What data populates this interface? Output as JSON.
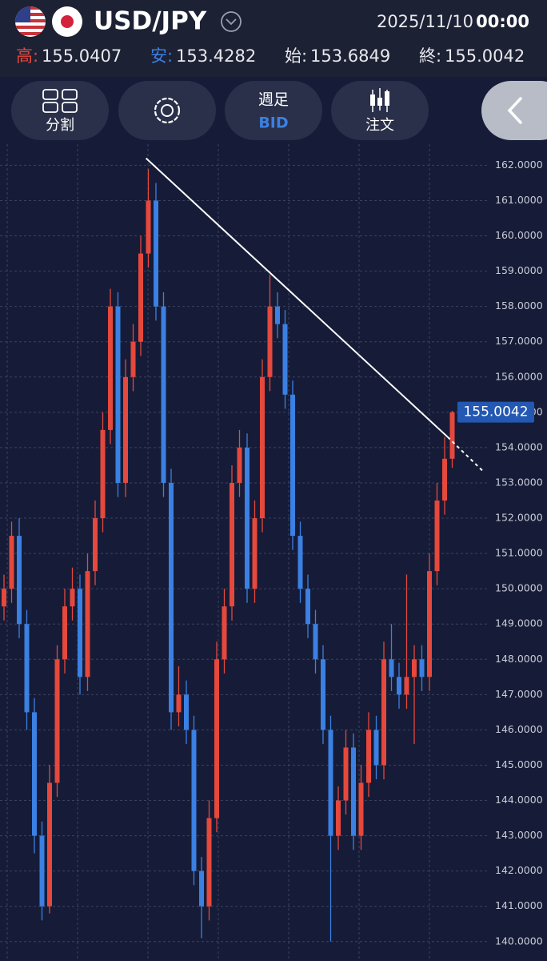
{
  "header": {
    "pair": "USD/JPY",
    "date": "2025/11/10",
    "time": "00:00",
    "ohlc": [
      {
        "label": "高:",
        "value": "155.0407"
      },
      {
        "label": "安:",
        "value": "153.4282"
      },
      {
        "label": "始:",
        "value": "153.6849"
      },
      {
        "label": "終:",
        "value": "155.0042"
      }
    ]
  },
  "toolbar": {
    "split": "分割",
    "period": "週足",
    "side": "BID",
    "order": "注文"
  },
  "chart_data": {
    "type": "candlestick",
    "up_color": "#e5483c",
    "down_color": "#3b80e3",
    "grid": true,
    "ylim": [
      139.45,
      162.6
    ],
    "yticks": [
      {
        "value": 140,
        "label": "140.0000"
      },
      {
        "value": 141,
        "label": "141.0000"
      },
      {
        "value": 142,
        "label": "142.0000"
      },
      {
        "value": 143,
        "label": "143.0000"
      },
      {
        "value": 144,
        "label": "144.0000"
      },
      {
        "value": 145,
        "label": "145.0000"
      },
      {
        "value": 146,
        "label": "146.0000"
      },
      {
        "value": 147,
        "label": "147.0000"
      },
      {
        "value": 148,
        "label": "148.0000"
      },
      {
        "value": 149,
        "label": "149.0000"
      },
      {
        "value": 150,
        "label": "150.0000"
      },
      {
        "value": 151,
        "label": "151.0000"
      },
      {
        "value": 152,
        "label": "152.0000"
      },
      {
        "value": 153,
        "label": "153.0000"
      },
      {
        "value": 154,
        "label": "154.0000"
      },
      {
        "value": 155,
        "label": "155.0000"
      },
      {
        "value": 156,
        "label": "156.0000"
      },
      {
        "value": 157,
        "label": "157.0000"
      },
      {
        "value": 158,
        "label": "158.0000"
      },
      {
        "value": 159,
        "label": "159.0000"
      },
      {
        "value": 160,
        "label": "160.0000"
      },
      {
        "value": 161,
        "label": "161.0000"
      },
      {
        "value": 162,
        "label": "162.0000"
      }
    ],
    "open": [
      149.5,
      150.0,
      151.5,
      149.0,
      146.5,
      143.0,
      141.0,
      144.5,
      148.0,
      149.5,
      150.0,
      147.5,
      150.5,
      152.0,
      154.5,
      158.0,
      153.0,
      156.0,
      157.0,
      159.5,
      161.0,
      158.0,
      153.0,
      146.5,
      147.0,
      146.0,
      142.0,
      141.0,
      143.5,
      148.0,
      149.5,
      153.0,
      154.0,
      150.0,
      152.0,
      156.0,
      158.0,
      157.5,
      155.5,
      151.5,
      150.0,
      149.0,
      148.0,
      146.0,
      143.0,
      144.0,
      145.5,
      143.0,
      144.5,
      146.0,
      145.0,
      148.0,
      147.5,
      147.0,
      147.5,
      148.0,
      147.5,
      150.5,
      152.5,
      153.6849
    ],
    "high": [
      150.4,
      151.9,
      152.0,
      149.4,
      146.9,
      143.4,
      145.0,
      148.4,
      150.0,
      150.6,
      150.4,
      151.0,
      152.5,
      155.0,
      158.5,
      158.4,
      156.5,
      157.5,
      160.0,
      161.9,
      161.5,
      158.4,
      153.4,
      147.8,
      147.4,
      146.4,
      142.4,
      144.0,
      148.5,
      150.0,
      153.5,
      154.5,
      154.4,
      152.5,
      156.5,
      158.9,
      158.4,
      157.9,
      155.9,
      151.9,
      150.4,
      149.4,
      148.4,
      146.4,
      144.4,
      146.0,
      145.9,
      145.0,
      146.5,
      146.4,
      148.5,
      149.0,
      147.9,
      150.4,
      148.4,
      148.4,
      151.0,
      153.0,
      154.3,
      155.0407
    ],
    "low": [
      149.1,
      149.6,
      148.6,
      146.0,
      142.5,
      140.6,
      140.8,
      144.1,
      147.6,
      149.1,
      147.0,
      147.1,
      150.1,
      151.6,
      154.1,
      152.6,
      152.6,
      155.6,
      156.6,
      159.1,
      157.6,
      152.6,
      146.0,
      146.1,
      145.6,
      141.6,
      140.1,
      140.6,
      143.1,
      147.6,
      149.1,
      152.6,
      149.6,
      149.6,
      151.6,
      155.6,
      157.1,
      155.1,
      151.1,
      149.6,
      148.6,
      147.6,
      145.6,
      140.0,
      142.6,
      143.6,
      142.6,
      142.6,
      144.1,
      144.6,
      144.6,
      147.1,
      146.6,
      146.6,
      145.6,
      147.1,
      147.1,
      150.1,
      152.1,
      153.4282
    ],
    "close": [
      150.0,
      151.5,
      149.0,
      146.5,
      143.0,
      141.0,
      144.5,
      148.0,
      149.5,
      150.0,
      147.5,
      150.5,
      152.0,
      154.5,
      158.0,
      153.0,
      156.0,
      157.0,
      159.5,
      161.0,
      158.0,
      153.0,
      146.5,
      147.0,
      146.0,
      142.0,
      141.0,
      143.5,
      148.0,
      149.5,
      153.0,
      154.0,
      150.0,
      152.0,
      156.0,
      158.0,
      157.5,
      155.5,
      151.5,
      150.0,
      149.0,
      148.0,
      146.0,
      143.0,
      144.0,
      145.5,
      143.0,
      144.5,
      146.0,
      145.0,
      148.0,
      147.5,
      147.0,
      147.5,
      148.0,
      147.5,
      150.5,
      152.5,
      153.6849,
      155.0042
    ],
    "trendline": {
      "x": [
        18.7,
        58.4,
        63.2
      ],
      "y": [
        162.2,
        154.3,
        153.3
      ]
    },
    "last_price": 155.0042
  }
}
